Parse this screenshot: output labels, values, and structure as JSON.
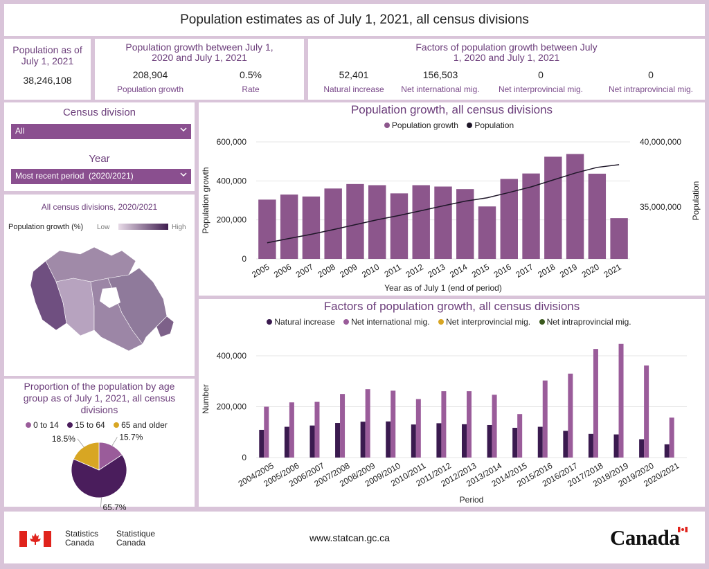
{
  "title": "Population estimates as of July 1, 2021, all census divisions",
  "kpi": {
    "population_label": "Population as of July 1, 2021",
    "population_value": "38,246,108",
    "growth_title": "Population growth between July 1, 2020 and July 1, 2021",
    "growth_value": "208,904",
    "growth_label": "Population growth",
    "rate_value": "0.5%",
    "rate_label": "Rate",
    "factors_title": "Factors of population growth between July 1, 2020 and July 1, 2021",
    "factors": [
      {
        "value": "52,401",
        "label": "Natural increase"
      },
      {
        "value": "156,503",
        "label": "Net international mig."
      },
      {
        "value": "0",
        "label": "Net interprovincial mig."
      },
      {
        "value": "0",
        "label": "Net intraprovincial mig."
      }
    ]
  },
  "filters": {
    "census_label": "Census division",
    "census_value": "All",
    "year_label": "Year",
    "year_value": "Most recent period  (2020/2021)"
  },
  "map": {
    "title": "All census divisions, 2020/2021",
    "legend_label": "Population growth (%)",
    "low": "Low",
    "high": "High"
  },
  "footer": {
    "stats_en_1": "Statistics",
    "stats_en_2": "Canada",
    "stats_fr_1": "Statistique",
    "stats_fr_2": "Canada",
    "url": "www.statcan.gc.ca",
    "wordmark": "Canada"
  },
  "colors": {
    "bar": "#8c568c",
    "natural": "#3a1a4f",
    "international": "#9a5c9a",
    "interprovincial": "#d8a623",
    "intraprovincial": "#3b5a1e",
    "pie_0_14": "#9a5c9a",
    "pie_15_64": "#4a1d5c",
    "pie_65": "#d8a623"
  },
  "chart_data": [
    {
      "type": "bar",
      "title": "Population growth, all census divisions",
      "xlabel": "Year as of July 1 (end of period)",
      "ylabel": "Population growth",
      "y2label": "Population",
      "categories": [
        "2005",
        "2006",
        "2007",
        "2008",
        "2009",
        "2010",
        "2011",
        "2012",
        "2013",
        "2014",
        "2015",
        "2016",
        "2017",
        "2018",
        "2019",
        "2020",
        "2021"
      ],
      "ylim": [
        0,
        600000
      ],
      "yticks": [
        "0",
        "200,000",
        "400,000",
        "600,000"
      ],
      "y2lim": [
        31000000,
        40000000
      ],
      "y2ticks": [
        {
          "v": 35000000,
          "t": "35,000,000"
        },
        {
          "v": 40000000,
          "t": "40,000,000"
        }
      ],
      "legend": [
        "Population growth",
        "Population"
      ],
      "series": [
        {
          "name": "Population growth",
          "values": [
            304000,
            330000,
            320000,
            361000,
            384000,
            378000,
            336000,
            378000,
            371000,
            358000,
            269000,
            410000,
            438000,
            524000,
            538000,
            437000,
            209000
          ]
        },
        {
          "name": "Population",
          "values": [
            32240000,
            32570000,
            32890000,
            33250000,
            33630000,
            34010000,
            34340000,
            34710000,
            35080000,
            35440000,
            35700000,
            36110000,
            36540000,
            37070000,
            37600000,
            38040000,
            38250000
          ]
        }
      ]
    },
    {
      "type": "bar",
      "title": "Factors of population growth, all census divisions",
      "xlabel": "Period",
      "ylabel": "Number",
      "categories": [
        "2004/2005",
        "2005/2006",
        "2006/2007",
        "2007/2008",
        "2008/2009",
        "2009/2010",
        "2010/2011",
        "2011/2012",
        "2012/2013",
        "2013/2014",
        "2014/2015",
        "2015/2016",
        "2016/2017",
        "2017/2018",
        "2018/2019",
        "2019/2020",
        "2020/2021"
      ],
      "ylim": [
        0,
        460000
      ],
      "yticks": [
        {
          "v": 0,
          "t": "0"
        },
        {
          "v": 200000,
          "t": "200,000"
        },
        {
          "v": 400000,
          "t": "400,000"
        }
      ],
      "series": [
        {
          "name": "Natural increase",
          "values": [
            109000,
            121000,
            126000,
            136000,
            141000,
            142000,
            130000,
            135000,
            131000,
            128000,
            117000,
            121000,
            105000,
            93000,
            91000,
            72000,
            52000
          ]
        },
        {
          "name": "Net international mig.",
          "values": [
            200000,
            217000,
            219000,
            250000,
            269000,
            263000,
            230000,
            261000,
            261000,
            247000,
            171000,
            303000,
            330000,
            427000,
            447000,
            362000,
            157000
          ]
        },
        {
          "name": "Net interprovincial mig.",
          "values": [
            0,
            0,
            0,
            0,
            0,
            0,
            0,
            0,
            0,
            0,
            0,
            0,
            0,
            0,
            0,
            0,
            0
          ]
        },
        {
          "name": "Net intraprovincial mig.",
          "values": [
            0,
            0,
            0,
            0,
            0,
            0,
            0,
            0,
            0,
            0,
            0,
            0,
            0,
            0,
            0,
            0,
            0
          ]
        }
      ]
    },
    {
      "type": "pie",
      "title": "Proportion of the population by age group as of July 1, 2021, all census divisions",
      "categories": [
        "0 to 14",
        "15 to 64",
        "65 and older"
      ],
      "values": [
        15.7,
        65.7,
        18.5
      ],
      "labels": [
        "15.7%",
        "65.7%",
        "18.5%"
      ]
    }
  ]
}
